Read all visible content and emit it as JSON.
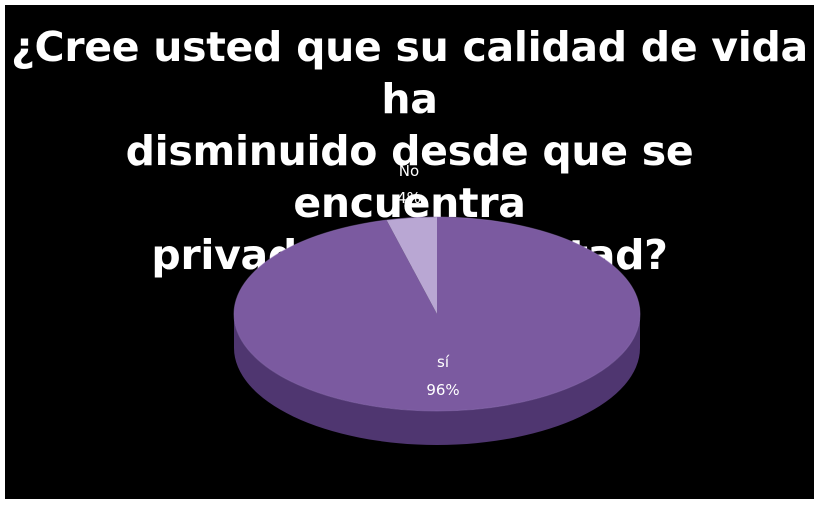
{
  "chart_data": {
    "type": "pie",
    "title_lines": [
      "¿Cree usted que su calidad de vida ha",
      "disminuido desde que se encuentra",
      "privado de la libertad?"
    ],
    "slices": [
      {
        "label": "sí",
        "value": 96,
        "value_label": "96%"
      },
      {
        "label": "No",
        "value": 4,
        "value_label": "4%"
      }
    ],
    "colors": {
      "background": "#000000",
      "si_top": "#7b5aa0",
      "si_side": "#4f3670",
      "no_top": "#b9a7d3",
      "no_side": "#8e7ab0",
      "label": "#ffffff"
    },
    "style": "3d-pie"
  }
}
